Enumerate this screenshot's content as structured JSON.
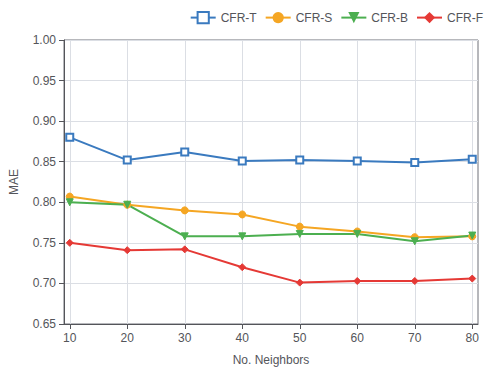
{
  "chart_data": {
    "type": "line",
    "x": [
      10,
      20,
      30,
      40,
      50,
      60,
      70,
      80
    ],
    "series": [
      {
        "name": "CFR-T",
        "color": "#3a7abf",
        "marker": "open_square",
        "values": [
          0.88,
          0.852,
          0.862,
          0.851,
          0.852,
          0.851,
          0.849,
          0.853
        ]
      },
      {
        "name": "CFR-S",
        "color": "#f5a623",
        "marker": "circle",
        "values": [
          0.807,
          0.797,
          0.79,
          0.785,
          0.77,
          0.764,
          0.757,
          0.758
        ]
      },
      {
        "name": "CFR-B",
        "color": "#4caf50",
        "marker": "triangle_down",
        "values": [
          0.8,
          0.797,
          0.758,
          0.758,
          0.761,
          0.761,
          0.752,
          0.759
        ]
      },
      {
        "name": "CFR-F",
        "color": "#e53935",
        "marker": "diamond",
        "values": [
          0.75,
          0.741,
          0.742,
          0.72,
          0.701,
          0.703,
          0.703,
          0.706
        ]
      }
    ],
    "xlabel": "No. Neighbors",
    "ylabel": "MAE",
    "xlim": [
      9,
      81
    ],
    "xticks": [
      10,
      20,
      30,
      40,
      50,
      60,
      70,
      80
    ],
    "ylim": [
      0.65,
      1.0
    ],
    "yticks": [
      0.65,
      {
        "value": 0.7,
        "label": "0.70"
      },
      0.75,
      {
        "value": 0.8,
        "label": "0.80"
      },
      0.85,
      {
        "value": 0.9,
        "label": "0.90"
      },
      0.95,
      {
        "value": 1.0,
        "label": "1.00"
      }
    ],
    "grid": true,
    "legend": "upper right"
  }
}
